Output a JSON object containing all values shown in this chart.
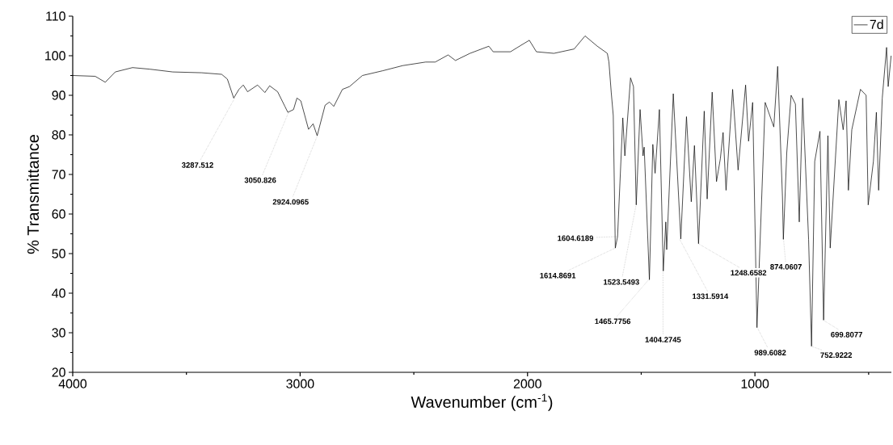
{
  "chart_data": {
    "type": "line",
    "xlabel": "Wavenumber (cm$^{-1}$)",
    "ylabel": "% Transmittance",
    "xlim": [
      4000,
      400
    ],
    "ylim": [
      20,
      110
    ],
    "xticks": [
      4000,
      {
        "value": 3500,
        "label": null
      },
      3000,
      {
        "value": 2500,
        "label": null
      },
      2000,
      {
        "value": 1500,
        "label": null
      },
      1000,
      {
        "value": 500,
        "label": null
      }
    ],
    "yticks": [
      20,
      {
        "value": 25,
        "label": null
      },
      30,
      {
        "value": 35,
        "label": null
      },
      40,
      {
        "value": 45,
        "label": null
      },
      50,
      {
        "value": 55,
        "label": null
      },
      60,
      {
        "value": 65,
        "label": null
      },
      70,
      {
        "value": 75,
        "label": null
      },
      80,
      {
        "value": 85,
        "label": null
      },
      90,
      {
        "value": 95,
        "label": null
      },
      100,
      {
        "value": 105,
        "label": null
      },
      110
    ],
    "legend": "top right",
    "series": [
      {
        "name": "7d",
        "color": "#000000",
        "x": [
          4000,
          3901,
          3857,
          3813,
          3737,
          3661,
          3560,
          3434,
          3345,
          3320,
          3292,
          3269,
          3250,
          3231,
          3187,
          3155,
          3134,
          3099,
          3067,
          3054,
          3029,
          3014,
          2997,
          2963,
          2943,
          2925,
          2890,
          2871,
          2852,
          2814,
          2783,
          2726,
          2637,
          2549,
          2448,
          2406,
          2349,
          2317,
          2253,
          2170,
          2151,
          2075,
          2024,
          1992,
          1961,
          1884,
          1795,
          1747,
          1693,
          1649,
          1642,
          1632,
          1623,
          1614,
          1604,
          1581,
          1572,
          1547,
          1534,
          1522,
          1505,
          1492,
          1487,
          1464,
          1449,
          1439,
          1420,
          1403,
          1392,
          1388,
          1359,
          1326,
          1301,
          1280,
          1266,
          1248,
          1223,
          1210,
          1188,
          1169,
          1152,
          1140,
          1127,
          1098,
          1074,
          1041,
          1028,
          1010,
          991,
          955,
          917,
          900,
          879,
          875,
          860,
          841,
          822,
          805,
          790,
          764,
          751,
          737,
          714,
          698,
          679,
          669,
          631,
          612,
          599,
          589,
          574,
          536,
          511,
          502,
          479,
          466,
          456,
          440,
          421,
          414,
          401
        ],
        "values": [
          95.0,
          94.8,
          93.3,
          95.9,
          97.0,
          96.6,
          95.9,
          95.7,
          95.3,
          94.1,
          89.3,
          91.5,
          92.6,
          90.9,
          92.6,
          90.7,
          92.4,
          90.9,
          87.2,
          85.7,
          86.4,
          89.3,
          88.6,
          81.4,
          82.8,
          79.8,
          87.5,
          88.3,
          87.2,
          91.5,
          92.2,
          95.0,
          96.2,
          97.5,
          98.4,
          98.4,
          100.2,
          98.8,
          100.6,
          102.4,
          101.0,
          101.0,
          102.8,
          103.9,
          101.0,
          100.6,
          101.7,
          105.0,
          102.4,
          100.6,
          98.4,
          90.8,
          84.9,
          51.4,
          54.3,
          84.3,
          74.7,
          94.4,
          92.2,
          62.3,
          86.4,
          74.7,
          76.9,
          43.4,
          77.6,
          70.3,
          86.4,
          45.6,
          58.0,
          51.0,
          90.4,
          53.7,
          84.6,
          63.1,
          77.3,
          52.5,
          86.0,
          63.8,
          90.8,
          68.2,
          74.0,
          80.6,
          66.0,
          91.5,
          71.1,
          92.6,
          78.4,
          88.2,
          31.3,
          88.2,
          82.0,
          97.3,
          64.5,
          53.6,
          75.5,
          90.0,
          87.8,
          58.0,
          89.3,
          53.6,
          26.6,
          73.3,
          80.9,
          33.2,
          79.8,
          51.4,
          88.9,
          81.3,
          88.6,
          66.0,
          81.3,
          91.5,
          90.0,
          62.3,
          73.3,
          85.7,
          66.0,
          89.3,
          102.1,
          92.2,
          100.0
        ]
      }
    ],
    "annotations": [
      {
        "text": "3287.512",
        "x": 3287.512,
        "y": 89.3
      },
      {
        "text": "3050.826",
        "x": 3050.826,
        "y": 85.7
      },
      {
        "text": "2924.0965",
        "x": 2924.0965,
        "y": 79.8
      },
      {
        "text": "1614.8691",
        "x": 1614.8691,
        "y": 51.4
      },
      {
        "text": "1604.6189",
        "x": 1604.6189,
        "y": 54.3
      },
      {
        "text": "1523.5493",
        "x": 1523.5493,
        "y": 62
      },
      {
        "text": "1465.7756",
        "x": 1465.7756,
        "y": 43.5
      },
      {
        "text": "1404.2745",
        "x": 1404.2745,
        "y": 45.6
      },
      {
        "text": "1331.5914",
        "x": 1331.5914,
        "y": 53.7
      },
      {
        "text": "1248.6582",
        "x": 1248.6582,
        "y": 52.5
      },
      {
        "text": "989.6082",
        "x": 989.6082,
        "y": 31.3
      },
      {
        "text": "874.0607",
        "x": 874.0607,
        "y": 53.6
      },
      {
        "text": "752.9222",
        "x": 752.9222,
        "y": 26.6
      },
      {
        "text": "699.8077",
        "x": 699.8077,
        "y": 33.2
      }
    ]
  }
}
